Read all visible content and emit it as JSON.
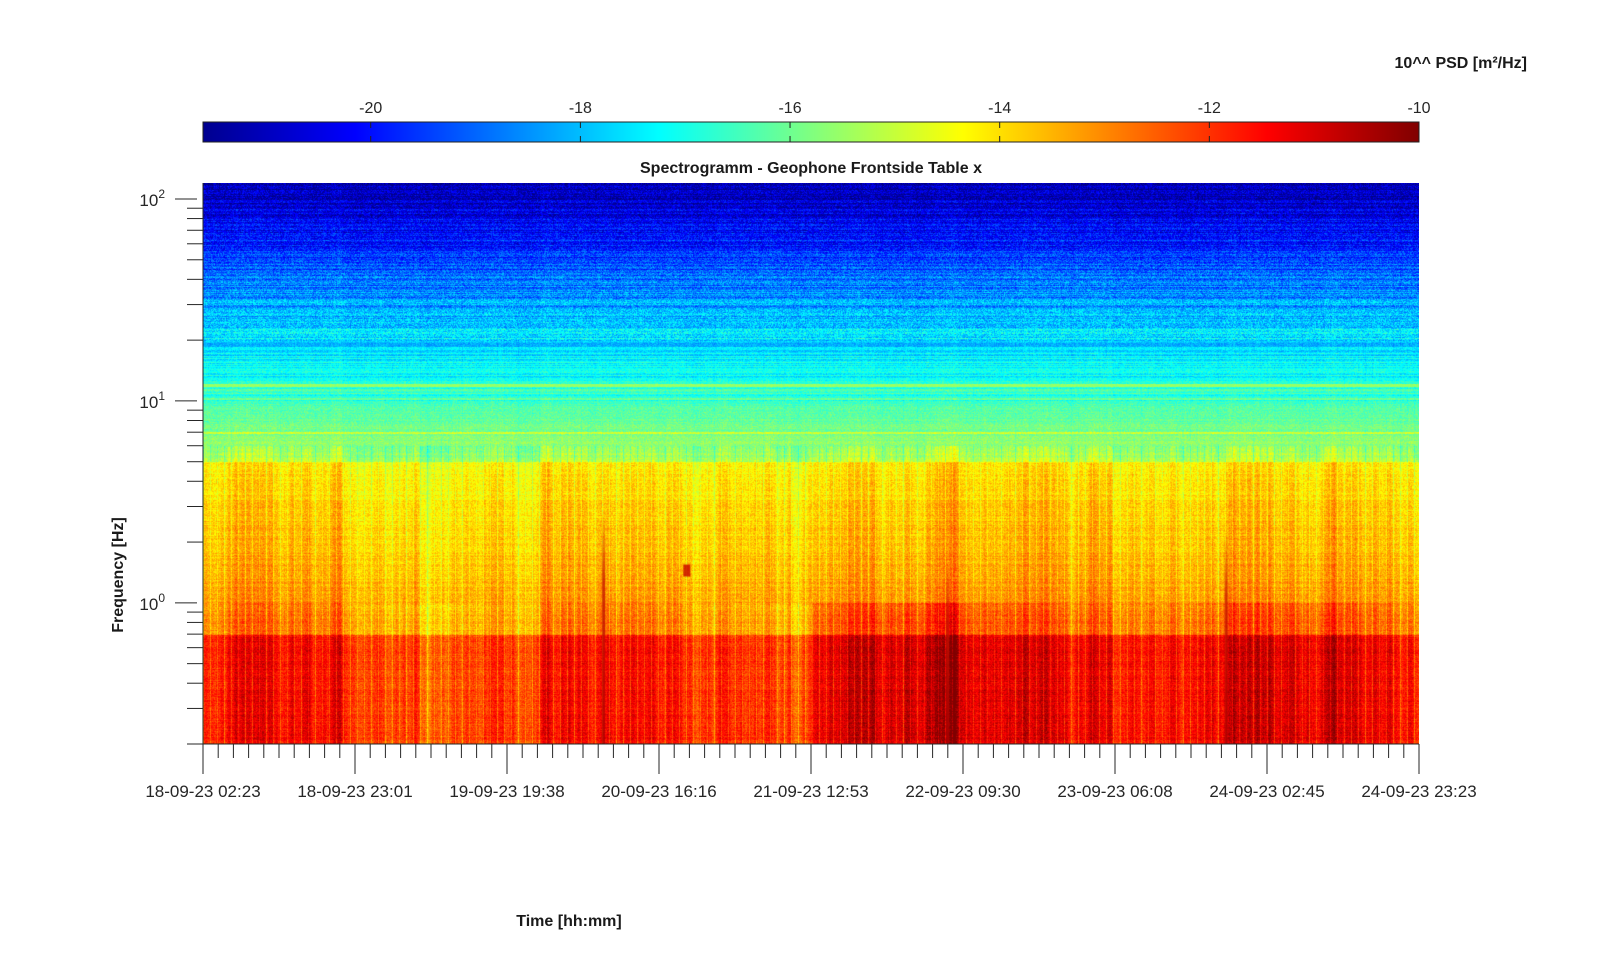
{
  "chart_data": {
    "type": "heatmap",
    "title": "Spectrogramm - Geophone Frontside Table x",
    "xlabel": "Time [hh:mm]",
    "ylabel": "Frequency [Hz]",
    "y_scale": "log",
    "ylim": [
      0.2,
      120
    ],
    "x_tick_labels": [
      "18-09-23 02:23",
      "18-09-23 23:01",
      "19-09-23 19:38",
      "20-09-23 16:16",
      "21-09-23 12:53",
      "22-09-23 09:30",
      "23-09-23 06:08",
      "24-09-23 02:45",
      "24-09-23 23:23"
    ],
    "y_ticks": [
      {
        "base": "10",
        "exp": "0",
        "value": 1
      },
      {
        "base": "10",
        "exp": "1",
        "value": 10
      },
      {
        "base": "10",
        "exp": "2",
        "value": 100
      }
    ],
    "colorbar": {
      "label": "10^^ PSD [m²/Hz]",
      "range": [
        -21.6,
        -10
      ],
      "ticks": [
        "-20",
        "-18",
        "-16",
        "-14",
        "-12",
        "-10"
      ],
      "colormap": "jet"
    },
    "features": {
      "low_freq_band_hz": [
        0.2,
        0.7
      ],
      "low_freq_level": -11.8,
      "mid_band_hz": [
        1,
        5
      ],
      "mid_level": -14.2,
      "band_5_20_hz_level": -16.8,
      "high_freq_level": -20,
      "line_12hz_level": -15.5
    }
  }
}
